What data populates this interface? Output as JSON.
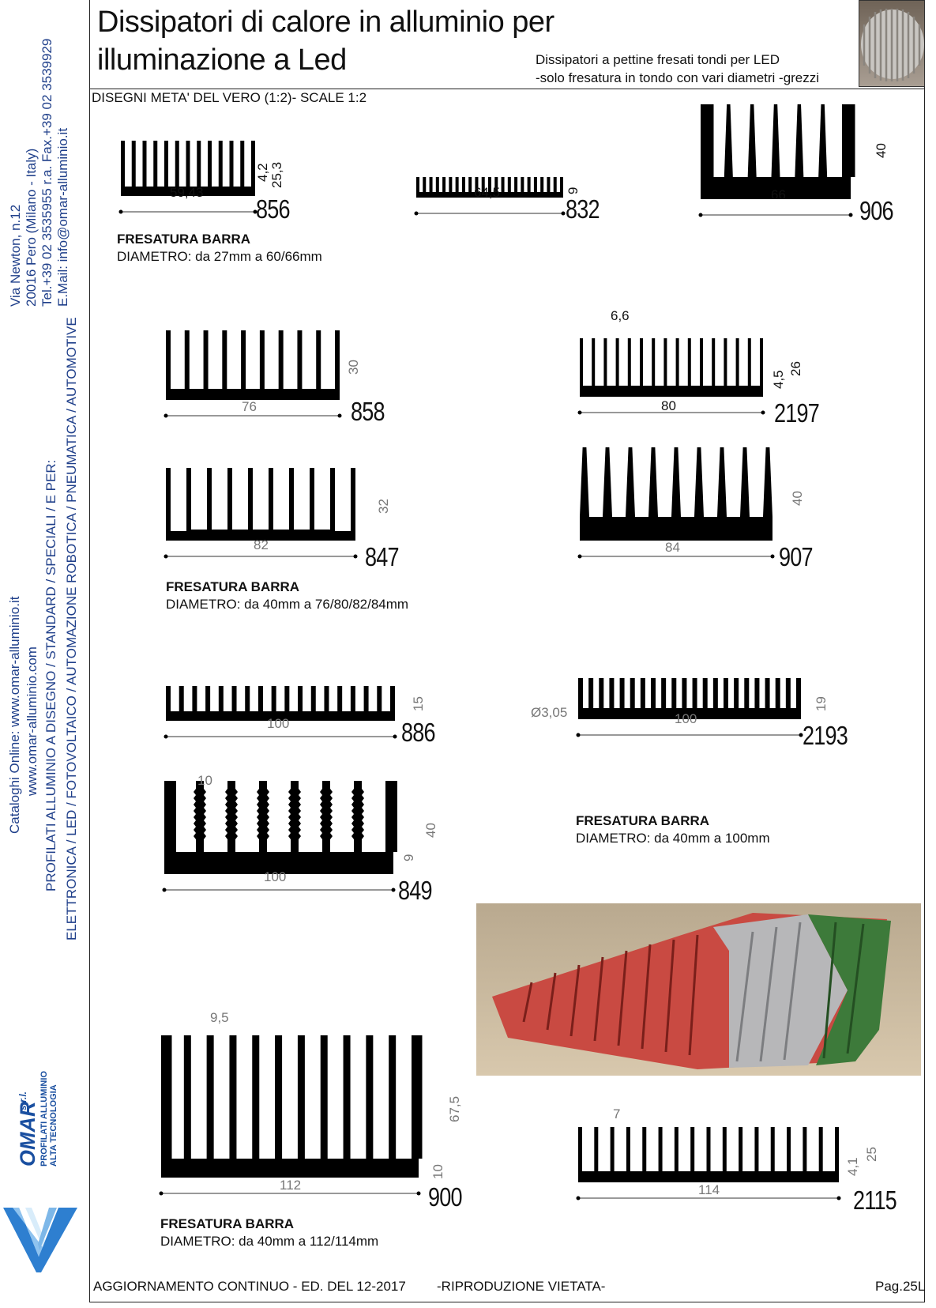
{
  "sidebar": {
    "address": [
      "Via Newton, n.12",
      "20016 Pero (Milano - Italy)",
      "Tel.+39 02 3535955 r.a. Fax.+39 02 3539929",
      "E.Mail: info@omar-alluminio.it"
    ],
    "catalog": [
      "Cataloghi Online: www.omar-alluminio.it",
      "www.omar-alluminio.com"
    ],
    "sectors": [
      "PROFILATI ALLUMINIO A DISEGNO / STANDARD / SPECIALI / E PER:",
      "ELETTRONICA / LED / FOTOVOLTAICO / AUTOMAZIONE ROBOTICA / PNEUMATICA / AUTOMOTIVE"
    ],
    "logo": {
      "brand": "OMAR",
      "suffix": "s.r.l.",
      "line1": "PROFILATI ALLUMINIO",
      "line2": "ALTA TECNOLOGIA",
      "color": "#1a4fa0"
    }
  },
  "header": {
    "title_line1": "Dissipatori di calore in alluminio per",
    "title_line2": "illuminazione a Led",
    "subtitle_line1": "Dissipatori a pettine fresati tondi per LED",
    "subtitle_line2": "-solo fresatura in tondo con vari diametri  -grezzi"
  },
  "scale_note": "DISEGNI META' DEL VERO (1:2)- SCALE 1:2",
  "profiles": [
    {
      "code": "856",
      "width": "59,43",
      "dims": [
        "4,2",
        "25,3"
      ]
    },
    {
      "code": "832",
      "width": "64,5",
      "dims": [
        "9"
      ]
    },
    {
      "code": "906",
      "width": "66",
      "dims": [
        "40"
      ]
    },
    {
      "code": "858",
      "width": "76",
      "dims": [
        "30"
      ]
    },
    {
      "code": "2197",
      "width": "80",
      "dims": [
        "6,6",
        "4,5",
        "26"
      ]
    },
    {
      "code": "847",
      "width": "82",
      "dims": [
        "32"
      ]
    },
    {
      "code": "907",
      "width": "84",
      "dims": [
        "40"
      ]
    },
    {
      "code": "886",
      "width": "100",
      "dims": [
        "15"
      ]
    },
    {
      "code": "2193",
      "width": "100",
      "dims": [
        "19",
        "Ø3,05"
      ]
    },
    {
      "code": "849",
      "width": "100",
      "dims": [
        "10",
        "40",
        "9"
      ]
    },
    {
      "code": "900",
      "width": "112",
      "dims": [
        "9,5",
        "67,5",
        "10"
      ]
    },
    {
      "code": "2115",
      "width": "114",
      "dims": [
        "7",
        "4,1",
        "25"
      ]
    }
  ],
  "milling_notes": [
    {
      "heading": "FRESATURA BARRA",
      "text": "DIAMETRO: da 27mm  a 60/66mm"
    },
    {
      "heading": "FRESATURA BARRA",
      "text": "DIAMETRO: da 40mm  a 76/80/82/84mm"
    },
    {
      "heading": "FRESATURA BARRA",
      "text": "DIAMETRO: da 40mm  a 100mm"
    },
    {
      "heading": "FRESATURA BARRA",
      "text": "DIAMETRO: da 40mm  a 112/114mm"
    }
  ],
  "footer": {
    "update": "AGGIORNAMENTO CONTINUO - ED. DEL 12-2017",
    "reproduction": "-RIPRODUZIONE VIETATA-",
    "page": "Pag.25L"
  }
}
